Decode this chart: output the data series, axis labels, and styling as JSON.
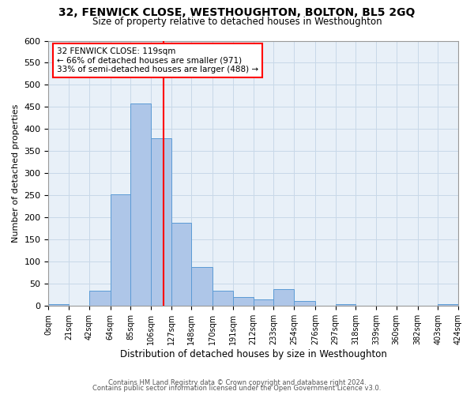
{
  "title": "32, FENWICK CLOSE, WESTHOUGHTON, BOLTON, BL5 2GQ",
  "subtitle": "Size of property relative to detached houses in Westhoughton",
  "xlabel": "Distribution of detached houses by size in Westhoughton",
  "ylabel": "Number of detached properties",
  "bar_edges": [
    0,
    21,
    42,
    64,
    85,
    106,
    127,
    148,
    170,
    191,
    212,
    233,
    254,
    276,
    297,
    318,
    339,
    360,
    382,
    403,
    424
  ],
  "bar_heights": [
    5,
    0,
    35,
    252,
    458,
    380,
    188,
    88,
    35,
    20,
    15,
    38,
    12,
    0,
    5,
    0,
    0,
    0,
    0,
    5
  ],
  "bar_color": "#aec6e8",
  "bar_edge_color": "#5b9bd5",
  "property_line_x": 119,
  "property_line_color": "red",
  "annotation_line1": "32 FENWICK CLOSE: 119sqm",
  "annotation_line2": "← 66% of detached houses are smaller (971)",
  "annotation_line3": "33% of semi-detached houses are larger (488) →",
  "annotation_box_color": "red",
  "ylim": [
    0,
    600
  ],
  "yticks": [
    0,
    50,
    100,
    150,
    200,
    250,
    300,
    350,
    400,
    450,
    500,
    550,
    600
  ],
  "xtick_labels": [
    "0sqm",
    "21sqm",
    "42sqm",
    "64sqm",
    "85sqm",
    "106sqm",
    "127sqm",
    "148sqm",
    "170sqm",
    "191sqm",
    "212sqm",
    "233sqm",
    "254sqm",
    "276sqm",
    "297sqm",
    "318sqm",
    "339sqm",
    "360sqm",
    "382sqm",
    "403sqm",
    "424sqm"
  ],
  "grid_color": "#c8d8e8",
  "bg_color": "#e8f0f8",
  "footer_line1": "Contains HM Land Registry data © Crown copyright and database right 2024.",
  "footer_line2": "Contains public sector information licensed under the Open Government Licence v3.0.",
  "title_fontsize": 10,
  "subtitle_fontsize": 8.5,
  "xlabel_fontsize": 8.5,
  "ylabel_fontsize": 8
}
